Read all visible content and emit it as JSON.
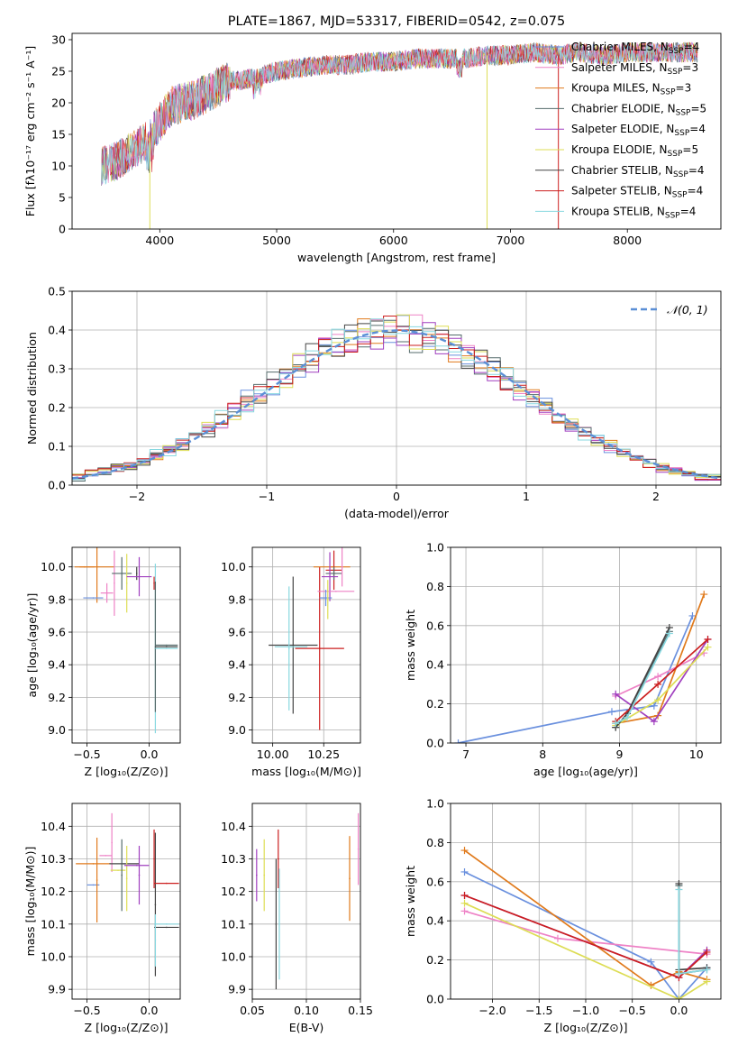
{
  "colors": [
    "#6a90de",
    "#ee82c6",
    "#e07a1c",
    "#556b6b",
    "#a03fbf",
    "#dddd55",
    "#444444",
    "#cc1f1f",
    "#88d8e0"
  ],
  "chart_data": [
    {
      "id": "spectrum",
      "type": "line",
      "title": "PLATE=1867, MJD=53317, FIBERID=0542, z=0.075",
      "xlabel": "wavelength [Angstrom, rest frame]",
      "ylabel": "Flux [fλ10⁻¹⁷ erg cm⁻² s⁻¹ A⁻¹]",
      "xlim": [
        3250,
        8800
      ],
      "ylim": [
        0,
        31
      ],
      "xticks": [
        4000,
        5000,
        6000,
        7000,
        8000
      ],
      "yticks": [
        0,
        5,
        10,
        15,
        20,
        25,
        30
      ],
      "legend_position": "right",
      "series": [
        {
          "name": "Chabrier MILES, N",
          "sub": "SSP",
          "suffix": "=4"
        },
        {
          "name": "Salpeter MILES, N",
          "sub": "SSP",
          "suffix": "=3"
        },
        {
          "name": "Kroupa MILES, N",
          "sub": "SSP",
          "suffix": "=3"
        },
        {
          "name": "Chabrier ELODIE, N",
          "sub": "SSP",
          "suffix": "=5"
        },
        {
          "name": "Salpeter ELODIE, N",
          "sub": "SSP",
          "suffix": "=4"
        },
        {
          "name": "Kroupa ELODIE, N",
          "sub": "SSP",
          "suffix": "=5"
        },
        {
          "name": "Chabrier STELIB, N",
          "sub": "SSP",
          "suffix": "=4"
        },
        {
          "name": "Salpeter STELIB, N",
          "sub": "SSP",
          "suffix": "=4"
        },
        {
          "name": "Kroupa STELIB, N",
          "sub": "SSP",
          "suffix": "=4"
        }
      ],
      "continuum": {
        "x": [
          3500,
          3600,
          3700,
          3800,
          3900,
          4000,
          4100,
          4200,
          4300,
          4400,
          4500,
          4600,
          4700,
          4800,
          4900,
          5000,
          5200,
          5400,
          5600,
          5800,
          6000,
          6200,
          6400,
          6600,
          6800,
          7000,
          7200,
          7400,
          7600,
          7800,
          8000,
          8200,
          8400,
          8600
        ],
        "y": [
          10,
          10.5,
          11.5,
          13,
          14,
          17,
          19.5,
          20,
          20.5,
          21.5,
          22.5,
          23.5,
          23.5,
          24,
          24.5,
          25,
          25.5,
          26,
          26,
          26.5,
          26.5,
          27,
          27,
          27,
          27.5,
          27.5,
          28,
          27.5,
          28,
          27.5,
          28,
          28,
          28,
          28
        ]
      },
      "features": [
        {
          "x": 3915,
          "y": 0
        },
        {
          "x": 6800,
          "y": 0
        },
        {
          "x": 7410,
          "y": 0
        }
      ]
    },
    {
      "id": "residuals",
      "type": "line",
      "xlabel": "(data-model)/error",
      "ylabel": "Normed distribution",
      "xlim": [
        -2.5,
        2.5
      ],
      "ylim": [
        0,
        0.5
      ],
      "xticks": [
        -2,
        -1,
        0,
        1,
        2
      ],
      "xticklabels": [
        "−2",
        "−1",
        "0",
        "1",
        "2"
      ],
      "yticks": [
        0,
        0.1,
        0.2,
        0.3,
        0.4,
        0.5
      ],
      "yticklabels": [
        "0.0",
        "0.1",
        "0.2",
        "0.3",
        "0.4",
        "0.5"
      ],
      "legend": "𝒩(0, 1)",
      "legend_position": "top-right",
      "bin_width": 0.1
    },
    {
      "id": "age_z",
      "type": "scatter",
      "xlabel": "Z [log₁₀(Z/Z⊙)]",
      "ylabel": "age  [log₁₀(age/yr)]",
      "xlim": [
        -0.62,
        0.25
      ],
      "ylim": [
        8.92,
        10.12
      ],
      "xticks": [
        -0.5,
        0,
        0.25
      ],
      "xticks_shown": [
        -0.5,
        0
      ],
      "xticklabels": [
        "−0.5",
        "0.0"
      ],
      "yticks": [
        9.0,
        9.2,
        9.4,
        9.6,
        9.8,
        10.0
      ],
      "yticklabels": [
        "9.0",
        "9.2",
        "9.4",
        "9.6",
        "9.8",
        "10.0"
      ],
      "points": [
        {
          "x": -0.52,
          "y": 10.0,
          "xe": 0.08,
          "ye": 0.0,
          "c": 2
        },
        {
          "x": -0.42,
          "y": 10.0,
          "xe": 0.14,
          "ye": 0.22,
          "c": 2
        },
        {
          "x": -0.45,
          "y": 9.81,
          "xe": 0.08,
          "ye": 0.0,
          "c": 0
        },
        {
          "x": -0.34,
          "y": 9.84,
          "xe": 0.05,
          "ye": 0.06,
          "c": 1
        },
        {
          "x": -0.28,
          "y": 9.9,
          "xe": 0.0,
          "ye": 0.2,
          "c": 1
        },
        {
          "x": -0.22,
          "y": 9.96,
          "xe": 0.08,
          "ye": 0.1,
          "c": 3
        },
        {
          "x": -0.18,
          "y": 9.9,
          "xe": 0.0,
          "ye": 0.18,
          "c": 5
        },
        {
          "x": -0.1,
          "y": 9.96,
          "xe": 0.0,
          "ye": 0.04,
          "c": 6
        },
        {
          "x": -0.08,
          "y": 9.94,
          "xe": 0.1,
          "ye": 0.12,
          "c": 4
        },
        {
          "x": 0.04,
          "y": 9.9,
          "xe": 0.0,
          "ye": 0.04,
          "c": 7
        },
        {
          "x": 0.05,
          "y": 9.5,
          "xe": 0.0,
          "ye": 0.52,
          "c": 8
        },
        {
          "x": 0.05,
          "y": 9.51,
          "xe": 0.0,
          "ye": 0.4,
          "c": 3
        },
        {
          "x": 0.14,
          "y": 9.51,
          "xe": 0.09,
          "ye": 0.0,
          "c": 6
        },
        {
          "x": 0.14,
          "y": 9.52,
          "xe": 0.09,
          "ye": 0.0,
          "c": 3
        },
        {
          "x": 0.14,
          "y": 9.5,
          "xe": 0.09,
          "ye": 0.0,
          "c": 8
        }
      ]
    },
    {
      "id": "age_mass",
      "type": "scatter",
      "xlabel": "mass [log₁₀(M/M⊙)]",
      "ylabel": "",
      "xlim": [
        9.9,
        10.43
      ],
      "ylim": [
        8.92,
        10.12
      ],
      "xticks": [
        10.0,
        10.25
      ],
      "xticks_shown": [
        10.0,
        10.25
      ],
      "xticklabels": [
        "10.00",
        "10.25"
      ],
      "yticks": [
        9.0,
        9.2,
        9.4,
        9.6,
        9.8,
        10.0
      ],
      "yticklabels": [
        "9.0",
        "9.2",
        "9.4",
        "9.6",
        "9.8",
        "10.0"
      ],
      "points": [
        {
          "x": 10.1,
          "y": 9.52,
          "xe": 0.12,
          "ye": 0.0,
          "c": 6
        },
        {
          "x": 10.1,
          "y": 9.52,
          "xe": 0.0,
          "ye": 0.42,
          "c": 6
        },
        {
          "x": 10.09,
          "y": 9.51,
          "xe": 0.08,
          "ye": 0.0,
          "c": 8
        },
        {
          "x": 10.08,
          "y": 9.5,
          "xe": 0.0,
          "ye": 0.38,
          "c": 8
        },
        {
          "x": 10.23,
          "y": 9.5,
          "xe": 0.12,
          "ye": 0.0,
          "c": 7
        },
        {
          "x": 10.23,
          "y": 9.5,
          "xe": 0.0,
          "ye": 0.5,
          "c": 7
        },
        {
          "x": 10.29,
          "y": 10.0,
          "xe": 0.09,
          "ye": 0.0,
          "c": 2
        },
        {
          "x": 10.3,
          "y": 9.98,
          "xe": 0.04,
          "ye": 0.12,
          "c": 7
        },
        {
          "x": 10.3,
          "y": 9.96,
          "xe": 0.04,
          "ye": 0.04,
          "c": 3
        },
        {
          "x": 10.28,
          "y": 9.94,
          "xe": 0.04,
          "ye": 0.15,
          "c": 4
        },
        {
          "x": 10.31,
          "y": 9.85,
          "xe": 0.09,
          "ye": 0.0,
          "c": 1
        },
        {
          "x": 10.26,
          "y": 9.81,
          "xe": 0.03,
          "ye": 0.05,
          "c": 0
        },
        {
          "x": 10.27,
          "y": 9.8,
          "xe": 0.0,
          "ye": 0.12,
          "c": 5
        },
        {
          "x": 10.34,
          "y": 10.0,
          "xe": 0.0,
          "ye": 0.12,
          "c": 1
        }
      ]
    },
    {
      "id": "weight_age",
      "type": "line",
      "xlabel": "age  [log₁₀(age/yr)]",
      "ylabel": "mass weight",
      "xlim": [
        6.8,
        10.32
      ],
      "ylim": [
        0,
        1.0
      ],
      "xticks": [
        7,
        8,
        9,
        10
      ],
      "yticks": [
        0,
        0.2,
        0.4,
        0.6,
        0.8,
        1.0
      ],
      "yticklabels": [
        "0.0",
        "0.2",
        "0.4",
        "0.6",
        "0.8",
        "1.0"
      ],
      "series": [
        {
          "c": 0,
          "x": [
            6.9,
            8.9,
            9.45,
            9.95
          ],
          "y": [
            0.0,
            0.16,
            0.19,
            0.65
          ]
        },
        {
          "c": 1,
          "x": [
            8.95,
            9.5,
            10.1
          ],
          "y": [
            0.24,
            0.34,
            0.46
          ]
        },
        {
          "c": 2,
          "x": [
            8.95,
            9.5,
            10.1
          ],
          "y": [
            0.1,
            0.14,
            0.76
          ]
        },
        {
          "c": 3,
          "x": [
            8.95,
            9.1,
            9.65
          ],
          "y": [
            0.08,
            0.15,
            0.57
          ]
        },
        {
          "c": 4,
          "x": [
            8.95,
            9.45,
            10.15
          ],
          "y": [
            0.25,
            0.11,
            0.53
          ]
        },
        {
          "c": 5,
          "x": [
            8.95,
            9.5,
            10.15
          ],
          "y": [
            0.09,
            0.22,
            0.49
          ]
        },
        {
          "c": 6,
          "x": [
            8.95,
            9.1,
            9.65
          ],
          "y": [
            0.08,
            0.15,
            0.59
          ]
        },
        {
          "c": 7,
          "x": [
            8.95,
            9.5,
            10.15
          ],
          "y": [
            0.11,
            0.3,
            0.53
          ]
        },
        {
          "c": 8,
          "x": [
            8.95,
            9.1,
            9.65
          ],
          "y": [
            0.1,
            0.13,
            0.56
          ]
        }
      ]
    },
    {
      "id": "mass_z",
      "type": "scatter",
      "xlabel": "Z [log₁₀(Z/Z⊙)]",
      "ylabel": "mass [log₁₀(M/M⊙)]",
      "xlim": [
        -0.62,
        0.25
      ],
      "ylim": [
        9.87,
        10.47
      ],
      "xticks": [
        -0.5,
        0
      ],
      "xticks_shown": [
        -0.5,
        0
      ],
      "xticklabels": [
        "−0.5",
        "0.0"
      ],
      "yticks": [
        9.9,
        10.0,
        10.1,
        10.2,
        10.3,
        10.4
      ],
      "yticklabels": [
        "9.9",
        "10.0",
        "10.1",
        "10.2",
        "10.3",
        "10.4"
      ],
      "points": [
        {
          "x": -0.45,
          "y": 10.285,
          "xe": 0.14,
          "ye": 0.0,
          "c": 2
        },
        {
          "x": -0.45,
          "y": 10.22,
          "xe": 0.05,
          "ye": 0.0,
          "c": 0
        },
        {
          "x": -0.42,
          "y": 10.235,
          "xe": 0.0,
          "ye": 0.13,
          "c": 2
        },
        {
          "x": -0.35,
          "y": 10.31,
          "xe": 0.05,
          "ye": 0.0,
          "c": 1
        },
        {
          "x": -0.3,
          "y": 10.35,
          "xe": 0.0,
          "ye": 0.09,
          "c": 1
        },
        {
          "x": -0.25,
          "y": 10.265,
          "xe": 0.06,
          "ye": 0.0,
          "c": 5
        },
        {
          "x": -0.22,
          "y": 10.25,
          "xe": 0.0,
          "ye": 0.11,
          "c": 3
        },
        {
          "x": -0.2,
          "y": 10.285,
          "xe": 0.12,
          "ye": 0.0,
          "c": 6
        },
        {
          "x": -0.18,
          "y": 10.24,
          "xe": 0.0,
          "ye": 0.1,
          "c": 5
        },
        {
          "x": -0.1,
          "y": 10.28,
          "xe": 0.1,
          "ye": 0.0,
          "c": 4
        },
        {
          "x": -0.08,
          "y": 10.25,
          "xe": 0.0,
          "ye": 0.09,
          "c": 4
        },
        {
          "x": 0.04,
          "y": 10.3,
          "xe": 0.0,
          "ye": 0.09,
          "c": 7
        },
        {
          "x": 0.05,
          "y": 10.16,
          "xe": 0.0,
          "ye": 0.22,
          "c": 6
        },
        {
          "x": 0.14,
          "y": 10.225,
          "xe": 0.1,
          "ye": 0.0,
          "c": 7
        },
        {
          "x": 0.14,
          "y": 10.09,
          "xe": 0.1,
          "ye": 0.0,
          "c": 6
        },
        {
          "x": 0.14,
          "y": 10.1,
          "xe": 0.1,
          "ye": 0.0,
          "c": 8
        },
        {
          "x": 0.05,
          "y": 10.05,
          "xe": 0.0,
          "ye": 0.08,
          "c": 8
        }
      ]
    },
    {
      "id": "mass_ebv",
      "type": "scatter",
      "xlabel": "E(B-V)",
      "ylabel": "",
      "xlim": [
        0.05,
        0.15
      ],
      "ylim": [
        9.87,
        10.47
      ],
      "xticks": [
        0.05,
        0.1,
        0.15
      ],
      "xticks_shown": [
        0.05,
        0.1,
        0.15
      ],
      "xticklabels": [
        "0.05",
        "0.10",
        "0.15"
      ],
      "yticks": [
        9.9,
        10.0,
        10.1,
        10.2,
        10.3,
        10.4
      ],
      "yticklabels": [
        "9.9",
        "10.0",
        "10.1",
        "10.2",
        "10.3",
        "10.4"
      ],
      "points": [
        {
          "x": 0.054,
          "y": 10.25,
          "xe": 0.0,
          "ye": 0.08,
          "c": 4
        },
        {
          "x": 0.061,
          "y": 10.25,
          "xe": 0.0,
          "ye": 0.11,
          "c": 5
        },
        {
          "x": 0.072,
          "y": 10.1,
          "xe": 0.0,
          "ye": 0.2,
          "c": 6
        },
        {
          "x": 0.074,
          "y": 10.3,
          "xe": 0.0,
          "ye": 0.09,
          "c": 7
        },
        {
          "x": 0.075,
          "y": 10.1,
          "xe": 0.0,
          "ye": 0.17,
          "c": 8
        },
        {
          "x": 0.14,
          "y": 10.24,
          "xe": 0.0,
          "ye": 0.13,
          "c": 2
        },
        {
          "x": 0.148,
          "y": 10.33,
          "xe": 0.0,
          "ye": 0.11,
          "c": 1
        }
      ]
    },
    {
      "id": "weight_z",
      "type": "line",
      "xlabel": "Z [log₁₀(Z/Z⊙)]",
      "ylabel": "mass weight",
      "xlim": [
        -2.45,
        0.45
      ],
      "ylim": [
        0,
        1.0
      ],
      "xticks": [
        -2.0,
        -1.5,
        -1.0,
        -0.5,
        0.0
      ],
      "xticklabels": [
        "−2.0",
        "−1.5",
        "−1.0",
        "−0.5",
        "0.0"
      ],
      "yticks": [
        0,
        0.2,
        0.4,
        0.6,
        0.8,
        1.0
      ],
      "yticklabels": [
        "0.0",
        "0.2",
        "0.4",
        "0.6",
        "0.8",
        "1.0"
      ],
      "series": [
        {
          "c": 0,
          "x": [
            -2.3,
            -0.3,
            0.0,
            0.3
          ],
          "y": [
            0.65,
            0.19,
            0.0,
            0.16
          ]
        },
        {
          "c": 1,
          "x": [
            -2.3,
            -1.3,
            0.3
          ],
          "y": [
            0.45,
            0.31,
            0.23
          ]
        },
        {
          "c": 2,
          "x": [
            -2.3,
            -0.3,
            0.0,
            0.3
          ],
          "y": [
            0.76,
            0.07,
            0.14,
            0.1
          ]
        },
        {
          "c": 3,
          "x": [
            0.0,
            0.0,
            0.3
          ],
          "y": [
            0.58,
            0.13,
            0.15
          ]
        },
        {
          "c": 4,
          "x": [
            -2.3,
            0.0,
            0.3
          ],
          "y": [
            0.53,
            0.11,
            0.25
          ]
        },
        {
          "c": 5,
          "x": [
            -2.3,
            0.0,
            0.3
          ],
          "y": [
            0.49,
            0.0,
            0.09
          ]
        },
        {
          "c": 6,
          "x": [
            0.0,
            0.0,
            0.3
          ],
          "y": [
            0.59,
            0.15,
            0.16
          ]
        },
        {
          "c": 7,
          "x": [
            -2.3,
            0.0,
            0.3
          ],
          "y": [
            0.53,
            0.11,
            0.24
          ]
        },
        {
          "c": 8,
          "x": [
            0.0,
            0.0,
            0.3
          ],
          "y": [
            0.56,
            0.13,
            0.15
          ]
        }
      ]
    }
  ]
}
